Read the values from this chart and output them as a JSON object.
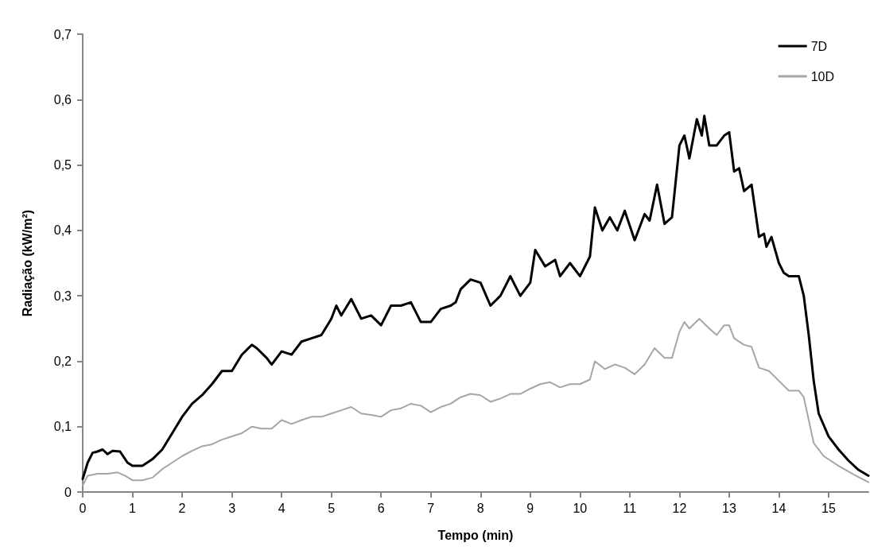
{
  "chart_data": {
    "type": "line",
    "xlabel": "Tempo (min)",
    "ylabel": "Radiação (kW/m²)",
    "xlim": [
      0,
      15.8
    ],
    "xticks": [
      0,
      1,
      2,
      3,
      4,
      5,
      6,
      7,
      8,
      9,
      10,
      11,
      12,
      13,
      14,
      15
    ],
    "ylim": [
      0,
      0.7
    ],
    "yticks": [
      0,
      {
        "value": 0.1,
        "label": "0,1"
      },
      {
        "value": 0.2,
        "label": "0,2"
      },
      {
        "value": 0.3,
        "label": "0,3"
      },
      {
        "value": 0.4,
        "label": "0,4"
      },
      {
        "value": 0.5,
        "label": "0,5"
      },
      {
        "value": 0.6,
        "label": "0,6"
      },
      {
        "value": 0.7,
        "label": "0,7"
      }
    ],
    "grid": false,
    "legend": "top right",
    "marker": "none",
    "line_style": "solid",
    "series": [
      {
        "name": "7D",
        "color": "#000000",
        "x": [
          0,
          0.1,
          0.2,
          0.3,
          0.4,
          0.5,
          0.6,
          0.75,
          0.9,
          1.0,
          1.2,
          1.4,
          1.6,
          1.8,
          2.0,
          2.2,
          2.4,
          2.6,
          2.8,
          3.0,
          3.2,
          3.4,
          3.5,
          3.7,
          3.8,
          4.0,
          4.2,
          4.4,
          4.6,
          4.8,
          5.0,
          5.1,
          5.2,
          5.4,
          5.6,
          5.8,
          6.0,
          6.2,
          6.4,
          6.6,
          6.8,
          7.0,
          7.2,
          7.4,
          7.5,
          7.6,
          7.8,
          8.0,
          8.2,
          8.4,
          8.6,
          8.8,
          9.0,
          9.1,
          9.3,
          9.5,
          9.6,
          9.8,
          10.0,
          10.2,
          10.3,
          10.45,
          10.6,
          10.75,
          10.9,
          11.1,
          11.3,
          11.4,
          11.55,
          11.7,
          11.85,
          12.0,
          12.1,
          12.2,
          12.35,
          12.45,
          12.5,
          12.6,
          12.75,
          12.9,
          13.0,
          13.1,
          13.2,
          13.3,
          13.45,
          13.6,
          13.7,
          13.75,
          13.85,
          14.0,
          14.1,
          14.2,
          14.4,
          14.5,
          14.6,
          14.7,
          14.8,
          15.0,
          15.2,
          15.4,
          15.6,
          15.8
        ],
        "values": [
          0.02,
          0.045,
          0.06,
          0.062,
          0.065,
          0.058,
          0.063,
          0.062,
          0.045,
          0.04,
          0.04,
          0.05,
          0.065,
          0.09,
          0.115,
          0.135,
          0.148,
          0.165,
          0.185,
          0.185,
          0.21,
          0.225,
          0.22,
          0.205,
          0.195,
          0.215,
          0.21,
          0.23,
          0.235,
          0.24,
          0.265,
          0.285,
          0.27,
          0.295,
          0.265,
          0.27,
          0.255,
          0.285,
          0.285,
          0.29,
          0.26,
          0.26,
          0.28,
          0.285,
          0.29,
          0.31,
          0.325,
          0.32,
          0.285,
          0.3,
          0.33,
          0.3,
          0.32,
          0.37,
          0.345,
          0.355,
          0.33,
          0.35,
          0.33,
          0.36,
          0.435,
          0.4,
          0.42,
          0.4,
          0.43,
          0.385,
          0.425,
          0.415,
          0.47,
          0.41,
          0.42,
          0.53,
          0.545,
          0.51,
          0.57,
          0.545,
          0.575,
          0.53,
          0.53,
          0.545,
          0.55,
          0.49,
          0.495,
          0.46,
          0.47,
          0.39,
          0.395,
          0.375,
          0.39,
          0.35,
          0.335,
          0.33,
          0.33,
          0.3,
          0.24,
          0.17,
          0.12,
          0.085,
          0.065,
          0.048,
          0.034,
          0.025
        ]
      },
      {
        "name": "10D",
        "color": "#a6a6a6",
        "x": [
          0,
          0.1,
          0.3,
          0.5,
          0.7,
          0.85,
          1.0,
          1.2,
          1.4,
          1.6,
          1.8,
          2.0,
          2.2,
          2.4,
          2.6,
          2.8,
          3.0,
          3.2,
          3.4,
          3.6,
          3.8,
          4.0,
          4.2,
          4.4,
          4.6,
          4.8,
          5.0,
          5.2,
          5.4,
          5.6,
          5.8,
          6.0,
          6.2,
          6.4,
          6.6,
          6.8,
          7.0,
          7.2,
          7.4,
          7.6,
          7.8,
          8.0,
          8.2,
          8.4,
          8.6,
          8.8,
          9.0,
          9.2,
          9.4,
          9.6,
          9.8,
          10.0,
          10.2,
          10.3,
          10.5,
          10.7,
          10.9,
          11.1,
          11.3,
          11.5,
          11.7,
          11.85,
          12.0,
          12.1,
          12.2,
          12.4,
          12.6,
          12.75,
          12.9,
          13.0,
          13.1,
          13.3,
          13.45,
          13.6,
          13.8,
          14.0,
          14.2,
          14.4,
          14.5,
          14.6,
          14.7,
          14.9,
          15.2,
          15.5,
          15.8
        ],
        "values": [
          0.01,
          0.025,
          0.028,
          0.028,
          0.03,
          0.025,
          0.018,
          0.018,
          0.022,
          0.035,
          0.045,
          0.055,
          0.063,
          0.07,
          0.073,
          0.08,
          0.085,
          0.09,
          0.1,
          0.097,
          0.097,
          0.11,
          0.104,
          0.11,
          0.115,
          0.115,
          0.12,
          0.125,
          0.13,
          0.12,
          0.118,
          0.115,
          0.125,
          0.128,
          0.135,
          0.132,
          0.122,
          0.13,
          0.135,
          0.145,
          0.15,
          0.148,
          0.138,
          0.143,
          0.15,
          0.15,
          0.158,
          0.165,
          0.168,
          0.16,
          0.165,
          0.165,
          0.172,
          0.2,
          0.188,
          0.195,
          0.19,
          0.18,
          0.195,
          0.22,
          0.205,
          0.205,
          0.245,
          0.26,
          0.25,
          0.265,
          0.25,
          0.24,
          0.255,
          0.255,
          0.235,
          0.225,
          0.222,
          0.19,
          0.185,
          0.17,
          0.155,
          0.155,
          0.145,
          0.11,
          0.075,
          0.055,
          0.04,
          0.027,
          0.015
        ]
      }
    ]
  }
}
